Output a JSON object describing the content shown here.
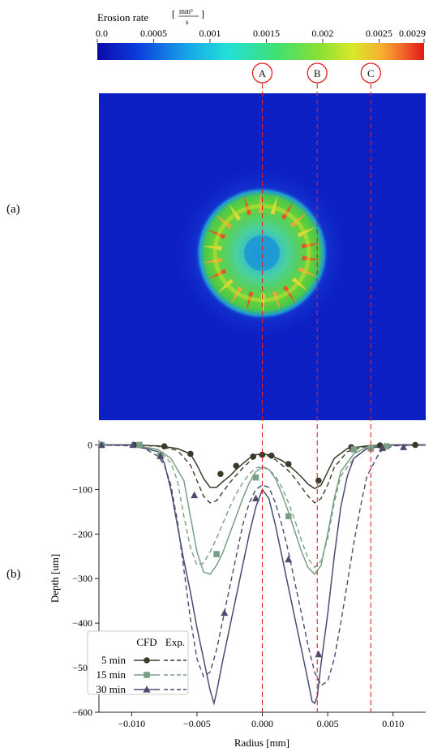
{
  "panels": {
    "a": "(a)",
    "b": "(b)"
  },
  "colorbar": {
    "title": "Erosion rate",
    "unit_numerator": "mm³",
    "unit_denominator": "s",
    "ticks": [
      "0.0",
      "0.0005",
      "0.001",
      "0.0015",
      "0.002",
      "0.0025",
      "0.0029"
    ]
  },
  "markers": [
    "A",
    "B",
    "C"
  ],
  "legend": {
    "col_cfd": "CFD",
    "col_exp": "Exp."
  },
  "chart_data": {
    "type": "line",
    "xlabel": "Radius [mm]",
    "ylabel": "Depth [um]",
    "xlim": [
      -0.0125,
      0.0125
    ],
    "ylim": [
      -600,
      10
    ],
    "xticks": [
      -0.01,
      -0.005,
      0.0,
      0.005,
      0.01
    ],
    "xtick_labels": [
      "−0.010",
      "−0.005",
      "0.000",
      "0.005",
      "0.010"
    ],
    "yticks": [
      0,
      -100,
      -200,
      -300,
      -400,
      -500,
      -600
    ],
    "ytick_labels": [
      "0",
      "−100",
      "−200",
      "−300",
      "−400",
      "−500",
      "−600"
    ],
    "reference_lines_x": [
      0.0,
      0.0042,
      0.0083
    ],
    "series": [
      {
        "name": "5 min",
        "color": "#3b3b2c",
        "marker": "circle",
        "cfd": {
          "x": [
            -0.0125,
            -0.01,
            -0.008,
            -0.0065,
            -0.0055,
            -0.005,
            -0.0045,
            -0.004,
            -0.0035,
            -0.003,
            -0.0025,
            -0.002,
            -0.0015,
            -0.001,
            -0.0005,
            0,
            0.0005,
            0.001,
            0.0015,
            0.002,
            0.0025,
            0.003,
            0.0035,
            0.004,
            0.0045,
            0.005,
            0.0055,
            0.0065,
            0.008,
            0.01,
            0.0125
          ],
          "y": [
            0,
            0,
            -2,
            -8,
            -20,
            -45,
            -75,
            -95,
            -95,
            -82,
            -70,
            -55,
            -42,
            -30,
            -22,
            -20,
            -22,
            -28,
            -35,
            -45,
            -58,
            -72,
            -88,
            -98,
            -90,
            -60,
            -30,
            -8,
            -2,
            0,
            0
          ]
        },
        "exp": {
          "x": [
            -0.0125,
            -0.01,
            -0.008,
            -0.0065,
            -0.0055,
            -0.005,
            -0.0045,
            -0.004,
            -0.0035,
            -0.003,
            -0.0025,
            -0.002,
            -0.0015,
            -0.001,
            -0.0005,
            0,
            0.0005,
            0.001,
            0.0015,
            0.002,
            0.0025,
            0.003,
            0.0035,
            0.004,
            0.0045,
            0.005,
            0.0055,
            0.0065,
            0.008,
            0.01,
            0.0125
          ],
          "y": [
            0,
            0,
            -3,
            -12,
            -45,
            -80,
            -115,
            -130,
            -125,
            -105,
            -85,
            -68,
            -52,
            -38,
            -27,
            -22,
            -25,
            -33,
            -45,
            -58,
            -75,
            -95,
            -115,
            -130,
            -120,
            -90,
            -50,
            -15,
            -3,
            0,
            0
          ]
        },
        "markers": {
          "x": [
            -0.0123,
            -0.0098,
            -0.0075,
            -0.0055,
            -0.0032,
            -0.002,
            -0.0007,
            0.0,
            0.0007,
            0.002,
            0.0043,
            0.0068,
            0.009,
            0.0117
          ],
          "y": [
            0,
            0,
            -3,
            -20,
            -65,
            -47,
            -26,
            -22,
            -24,
            -43,
            -80,
            -5,
            -1,
            0
          ]
        }
      },
      {
        "name": "15 min",
        "color": "#7a9e86",
        "marker": "square",
        "cfd": {
          "x": [
            -0.0125,
            -0.01,
            -0.008,
            -0.007,
            -0.006,
            -0.0055,
            -0.005,
            -0.0045,
            -0.004,
            -0.0035,
            -0.003,
            -0.0025,
            -0.002,
            -0.0015,
            -0.001,
            -0.0005,
            0,
            0.0005,
            0.001,
            0.0015,
            0.002,
            0.0025,
            0.003,
            0.0035,
            0.004,
            0.0045,
            0.005,
            0.0055,
            0.006,
            0.007,
            0.008,
            0.01,
            0.0125
          ],
          "y": [
            0,
            0,
            -10,
            -30,
            -80,
            -160,
            -240,
            -285,
            -290,
            -270,
            -240,
            -200,
            -160,
            -120,
            -85,
            -60,
            -50,
            -55,
            -75,
            -110,
            -150,
            -195,
            -240,
            -275,
            -290,
            -270,
            -200,
            -120,
            -60,
            -20,
            -5,
            0,
            0
          ]
        },
        "exp": {
          "x": [
            -0.0125,
            -0.01,
            -0.008,
            -0.007,
            -0.0065,
            -0.006,
            -0.0055,
            -0.005,
            -0.0045,
            -0.004,
            -0.0035,
            -0.003,
            -0.0025,
            -0.002,
            -0.0015,
            -0.001,
            -0.0005,
            0,
            0.0005,
            0.001,
            0.0015,
            0.002,
            0.0025,
            0.003,
            0.0035,
            0.004,
            0.0045,
            0.005,
            0.0055,
            0.006,
            0.007,
            0.008,
            0.01,
            0.0125
          ],
          "y": [
            0,
            0,
            -10,
            -40,
            -80,
            -160,
            -230,
            -270,
            -265,
            -240,
            -210,
            -175,
            -140,
            -110,
            -85,
            -65,
            -52,
            -48,
            -55,
            -70,
            -95,
            -130,
            -170,
            -215,
            -255,
            -275,
            -260,
            -210,
            -130,
            -70,
            -30,
            -8,
            0,
            0
          ]
        },
        "markers": {
          "x": [
            -0.0123,
            -0.0094,
            -0.0078,
            -0.0035,
            -0.0005,
            0.002,
            0.007,
            0.0083,
            0.0095
          ],
          "y": [
            0,
            0,
            -22,
            -245,
            -73,
            -160,
            -10,
            -8,
            -3
          ]
        }
      },
      {
        "name": "30 min",
        "color": "#4b4b72",
        "marker": "triangle",
        "cfd": {
          "x": [
            -0.0125,
            -0.01,
            -0.008,
            -0.0075,
            -0.007,
            -0.0065,
            -0.006,
            -0.0055,
            -0.005,
            -0.0045,
            -0.004,
            -0.0037,
            -0.0035,
            -0.003,
            -0.0025,
            -0.002,
            -0.0015,
            -0.001,
            -0.0005,
            0,
            0.0005,
            0.001,
            0.0015,
            0.002,
            0.0025,
            0.003,
            0.0035,
            0.0038,
            0.004,
            0.0042,
            0.0045,
            0.005,
            0.0055,
            0.006,
            0.0065,
            0.007,
            0.008,
            0.01,
            0.0125
          ],
          "y": [
            0,
            0,
            -15,
            -40,
            -100,
            -180,
            -260,
            -330,
            -410,
            -480,
            -550,
            -580,
            -555,
            -480,
            -410,
            -340,
            -270,
            -200,
            -140,
            -100,
            -120,
            -180,
            -250,
            -320,
            -390,
            -460,
            -530,
            -575,
            -580,
            -565,
            -490,
            -380,
            -250,
            -140,
            -70,
            -30,
            -8,
            0,
            0
          ]
        },
        "exp": {
          "x": [
            -0.0125,
            -0.01,
            -0.009,
            -0.008,
            -0.0075,
            -0.007,
            -0.0065,
            -0.006,
            -0.0055,
            -0.005,
            -0.0045,
            -0.004,
            -0.0035,
            -0.003,
            -0.0025,
            -0.002,
            -0.0015,
            -0.001,
            -0.0005,
            0,
            0.0005,
            0.001,
            0.0015,
            0.002,
            0.0025,
            0.003,
            0.0035,
            0.004,
            0.0045,
            0.005,
            0.0055,
            0.006,
            0.0065,
            0.007,
            0.0075,
            0.008,
            0.009,
            0.01,
            0.0125
          ],
          "y": [
            0,
            -2,
            -8,
            -25,
            -45,
            -90,
            -170,
            -280,
            -390,
            -480,
            -520,
            -510,
            -460,
            -390,
            -320,
            -250,
            -180,
            -130,
            -100,
            -90,
            -95,
            -130,
            -180,
            -240,
            -310,
            -380,
            -450,
            -510,
            -540,
            -530,
            -480,
            -400,
            -310,
            -220,
            -140,
            -70,
            -15,
            -2,
            0
          ]
        },
        "markers": {
          "x": [
            -0.0123,
            -0.0099,
            -0.0078,
            -0.0052,
            -0.0029,
            -0.0005,
            0.002,
            0.0043,
            0.0092,
            0.0108
          ],
          "y": [
            0,
            0,
            -25,
            -113,
            -377,
            -120,
            -257,
            -470,
            -7,
            -5
          ]
        }
      }
    ]
  }
}
